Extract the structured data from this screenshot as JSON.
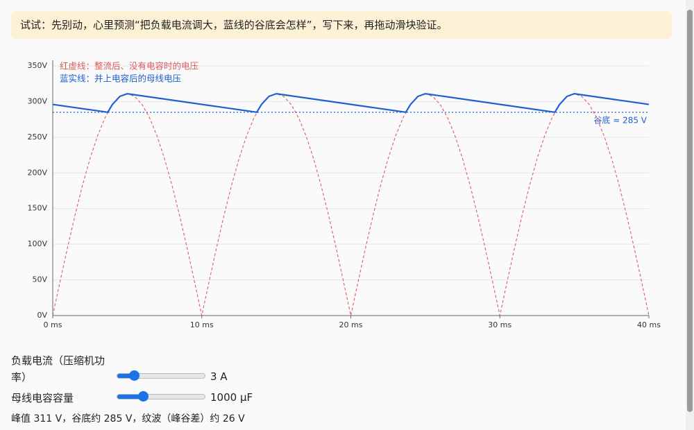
{
  "tip": "试试：先别动，心里预测“把负载电流调大，蓝线的谷底会怎样”，写下来，再拖动滑块验证。",
  "chart_data": {
    "type": "line",
    "xlim": [
      0,
      40
    ],
    "xticks": [
      {
        "value": 0,
        "label": "0 ms"
      },
      {
        "value": 10,
        "label": "10 ms"
      },
      {
        "value": 20,
        "label": "20 ms"
      },
      {
        "value": 30,
        "label": "30 ms"
      },
      {
        "value": 40,
        "label": "40 ms"
      }
    ],
    "ylim": [
      0,
      350
    ],
    "yticks": [
      {
        "value": 0,
        "label": "0V"
      },
      {
        "value": 50,
        "label": "50V"
      },
      {
        "value": 100,
        "label": "100V"
      },
      {
        "value": 150,
        "label": "150V"
      },
      {
        "value": 200,
        "label": "200V"
      },
      {
        "value": 250,
        "label": "250V"
      },
      {
        "value": 300,
        "label": "300V"
      },
      {
        "value": 350,
        "label": "350V"
      }
    ],
    "grid": true,
    "series": [
      {
        "name": "红虚线：整流后、没有电容时的电压",
        "color": "#e05a5a",
        "dashed": true,
        "x": [
          0,
          0.5,
          1,
          1.5,
          2,
          2.5,
          3,
          3.5,
          4,
          4.5,
          5,
          5.5,
          6,
          6.5,
          7,
          7.5,
          8,
          8.5,
          9,
          9.5,
          10,
          10.5,
          11,
          11.5,
          12,
          12.5,
          13,
          13.5,
          14,
          14.5,
          15,
          15.5,
          16,
          16.5,
          17,
          17.5,
          18,
          18.5,
          19,
          19.5,
          20,
          20.5,
          21,
          21.5,
          22,
          22.5,
          23,
          23.5,
          24,
          24.5,
          25,
          25.5,
          26,
          26.5,
          27,
          27.5,
          28,
          28.5,
          29,
          29.5,
          30,
          30.5,
          31,
          31.5,
          32,
          32.5,
          33,
          33.5,
          34,
          34.5,
          35,
          35.5,
          36,
          36.5,
          37,
          37.5,
          38,
          38.5,
          39,
          39.5,
          40
        ],
        "values": [
          0,
          48.6,
          96.1,
          141.2,
          182.8,
          219.9,
          251.6,
          277.1,
          295.8,
          307.2,
          311,
          307.2,
          295.8,
          277.1,
          251.6,
          219.9,
          182.8,
          141.2,
          96.1,
          48.6,
          0,
          48.6,
          96.1,
          141.2,
          182.8,
          219.9,
          251.6,
          277.1,
          295.8,
          307.2,
          311,
          307.2,
          295.8,
          277.1,
          251.6,
          219.9,
          182.8,
          141.2,
          96.1,
          48.6,
          0,
          48.6,
          96.1,
          141.2,
          182.8,
          219.9,
          251.6,
          277.1,
          295.8,
          307.2,
          311,
          307.2,
          295.8,
          277.1,
          251.6,
          219.9,
          182.8,
          141.2,
          96.1,
          48.6,
          0,
          48.6,
          96.1,
          141.2,
          182.8,
          219.9,
          251.6,
          277.1,
          295.8,
          307.2,
          311,
          307.2,
          295.8,
          277.1,
          251.6,
          219.9,
          182.8,
          141.2,
          96.1,
          48.6,
          0
        ]
      },
      {
        "name": "蓝实线：并上电容后的母线电压",
        "color": "#1f5fcf",
        "dashed": false,
        "x": [
          0,
          3.69,
          4,
          4.5,
          5,
          13.69,
          14,
          14.5,
          15,
          23.69,
          24,
          24.5,
          25,
          33.69,
          34,
          34.5,
          35,
          40
        ],
        "values": [
          296,
          285,
          295.8,
          307.2,
          311,
          285,
          295.8,
          307.2,
          311,
          285,
          295.8,
          307.2,
          311,
          285,
          295.8,
          307.2,
          311,
          296
        ]
      }
    ],
    "reference_line": {
      "value": 285,
      "label": "谷底 ≈ 285 V",
      "color": "#1f5fcf"
    }
  },
  "controls": [
    {
      "label": "负载电流（压缩机功率）",
      "value_label": "3 A"
    },
    {
      "label": "母线电容容量",
      "value_label": "1000 µF"
    }
  ],
  "summary": "峰值 311 V，谷底约 285 V，纹波（峰谷差）约 26 V"
}
